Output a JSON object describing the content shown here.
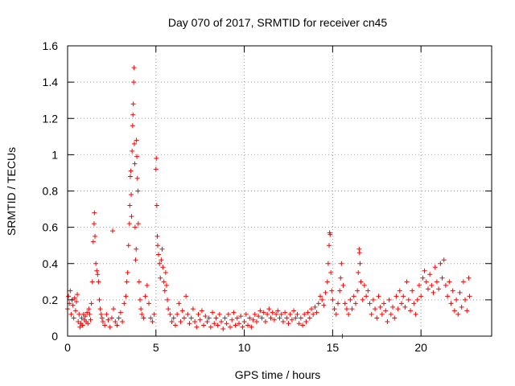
{
  "chart_data": {
    "type": "scatter",
    "title": "Day 070 of 2017, SRMTID for receiver cn45",
    "xlabel": "GPS time / hours",
    "ylabel": "SRMTID / TECUs",
    "xlim": [
      0,
      24
    ],
    "ylim": [
      0,
      1.6
    ],
    "xticks": [
      0,
      5,
      10,
      15,
      20
    ],
    "yticks": [
      0,
      0.2,
      0.4,
      0.6,
      0.8,
      1,
      1.2,
      1.4,
      1.6
    ],
    "xtick_labels": [
      "0",
      "5",
      "10",
      "15",
      "20"
    ],
    "ytick_labels": [
      "0",
      "0.2",
      "0.4",
      "0.6",
      "0.8",
      "1",
      "1.2",
      "1.4",
      "1.6"
    ],
    "grid": true,
    "marker": "+",
    "color": "#ff0000",
    "series": [
      {
        "name": "SRMTID",
        "points": [
          [
            0.0,
            0.15
          ],
          [
            0.05,
            0.22
          ],
          [
            0.1,
            0.18
          ],
          [
            0.15,
            0.25
          ],
          [
            0.2,
            0.12
          ],
          [
            0.25,
            0.2
          ],
          [
            0.3,
            0.17
          ],
          [
            0.35,
            0.1
          ],
          [
            0.4,
            0.21
          ],
          [
            0.45,
            0.14
          ],
          [
            0.5,
            0.19
          ],
          [
            0.55,
            0.23
          ],
          [
            0.6,
            0.08
          ],
          [
            0.65,
            0.12
          ],
          [
            0.7,
            0.05
          ],
          [
            0.75,
            0.07
          ],
          [
            0.8,
            0.1
          ],
          [
            0.85,
            0.06
          ],
          [
            0.9,
            0.12
          ],
          [
            0.95,
            0.09
          ],
          [
            1.0,
            0.11
          ],
          [
            1.05,
            0.08
          ],
          [
            1.1,
            0.13
          ],
          [
            1.15,
            0.07
          ],
          [
            1.2,
            0.15
          ],
          [
            1.25,
            0.12
          ],
          [
            1.3,
            0.09
          ],
          [
            1.35,
            0.18
          ],
          [
            1.4,
            0.3
          ],
          [
            1.45,
            0.52
          ],
          [
            1.5,
            0.62
          ],
          [
            1.52,
            0.68
          ],
          [
            1.55,
            0.55
          ],
          [
            1.6,
            0.4
          ],
          [
            1.65,
            0.36
          ],
          [
            1.7,
            0.34
          ],
          [
            1.75,
            0.3
          ],
          [
            1.8,
            0.2
          ],
          [
            1.85,
            0.15
          ],
          [
            1.9,
            0.12
          ],
          [
            1.95,
            0.1
          ],
          [
            2.0,
            0.08
          ],
          [
            2.1,
            0.06
          ],
          [
            2.2,
            0.12
          ],
          [
            2.3,
            0.09
          ],
          [
            2.4,
            0.05
          ],
          [
            2.5,
            0.1
          ],
          [
            2.55,
            0.58
          ],
          [
            2.6,
            0.15
          ],
          [
            2.7,
            0.08
          ],
          [
            2.8,
            0.06
          ],
          [
            2.9,
            0.1
          ],
          [
            3.0,
            0.13
          ],
          [
            3.1,
            0.08
          ],
          [
            3.2,
            0.18
          ],
          [
            3.3,
            0.22
          ],
          [
            3.35,
            0.3
          ],
          [
            3.4,
            0.35
          ],
          [
            3.45,
            0.5
          ],
          [
            3.5,
            0.62
          ],
          [
            3.52,
            0.72
          ],
          [
            3.55,
            0.88
          ],
          [
            3.58,
            0.91
          ],
          [
            3.6,
            0.78
          ],
          [
            3.62,
            0.66
          ],
          [
            3.65,
            1.02
          ],
          [
            3.68,
            1.16
          ],
          [
            3.7,
            1.22
          ],
          [
            3.72,
            1.28
          ],
          [
            3.74,
            1.4
          ],
          [
            3.76,
            1.48
          ],
          [
            3.78,
            1.06
          ],
          [
            3.8,
            0.95
          ],
          [
            3.82,
            0.6
          ],
          [
            3.85,
            0.42
          ],
          [
            3.88,
            0.48
          ],
          [
            3.9,
            1.08
          ],
          [
            3.92,
            0.99
          ],
          [
            3.95,
            0.87
          ],
          [
            3.98,
            0.8
          ],
          [
            4.0,
            0.62
          ],
          [
            4.05,
            0.3
          ],
          [
            4.1,
            0.2
          ],
          [
            4.15,
            0.15
          ],
          [
            4.2,
            0.12
          ],
          [
            4.3,
            0.1
          ],
          [
            4.4,
            0.22
          ],
          [
            4.5,
            0.28
          ],
          [
            4.6,
            0.18
          ],
          [
            4.7,
            0.1
          ],
          [
            4.8,
            0.08
          ],
          [
            4.9,
            0.12
          ],
          [
            5.0,
            0.92
          ],
          [
            5.02,
            0.98
          ],
          [
            5.05,
            0.72
          ],
          [
            5.08,
            0.55
          ],
          [
            5.1,
            0.5
          ],
          [
            5.15,
            0.45
          ],
          [
            5.2,
            0.4
          ],
          [
            5.25,
            0.32
          ],
          [
            5.3,
            0.42
          ],
          [
            5.35,
            0.48
          ],
          [
            5.4,
            0.38
          ],
          [
            5.45,
            0.3
          ],
          [
            5.5,
            0.25
          ],
          [
            5.55,
            0.35
          ],
          [
            5.6,
            0.28
          ],
          [
            5.65,
            0.2
          ],
          [
            5.7,
            0.15
          ],
          [
            5.8,
            0.12
          ],
          [
            5.9,
            0.08
          ],
          [
            6.0,
            0.1
          ],
          [
            6.1,
            0.06
          ],
          [
            6.2,
            0.12
          ],
          [
            6.3,
            0.18
          ],
          [
            6.4,
            0.08
          ],
          [
            6.5,
            0.14
          ],
          [
            6.6,
            0.1
          ],
          [
            6.7,
            0.22
          ],
          [
            6.8,
            0.12
          ],
          [
            6.9,
            0.07
          ],
          [
            7.0,
            0.1
          ],
          [
            7.1,
            0.15
          ],
          [
            7.2,
            0.08
          ],
          [
            7.3,
            0.05
          ],
          [
            7.4,
            0.12
          ],
          [
            7.5,
            0.09
          ],
          [
            7.6,
            0.14
          ],
          [
            7.7,
            0.06
          ],
          [
            7.8,
            0.11
          ],
          [
            7.9,
            0.08
          ],
          [
            8.0,
            0.1
          ],
          [
            8.1,
            0.05
          ],
          [
            8.2,
            0.13
          ],
          [
            8.3,
            0.07
          ],
          [
            8.4,
            0.1
          ],
          [
            8.5,
            0.06
          ],
          [
            8.6,
            0.12
          ],
          [
            8.7,
            0.08
          ],
          [
            8.8,
            0.04
          ],
          [
            8.9,
            0.1
          ],
          [
            9.0,
            0.07
          ],
          [
            9.1,
            0.12
          ],
          [
            9.2,
            0.05
          ],
          [
            9.3,
            0.09
          ],
          [
            9.4,
            0.13
          ],
          [
            9.5,
            0.06
          ],
          [
            9.6,
            0.1
          ],
          [
            9.7,
            0.07
          ],
          [
            9.8,
            0.11
          ],
          [
            9.9,
            0.05
          ],
          [
            10.0,
            0.08
          ],
          [
            10.1,
            0.12
          ],
          [
            10.2,
            0.06
          ],
          [
            10.3,
            0.1
          ],
          [
            10.4,
            0.05
          ],
          [
            10.5,
            0.09
          ],
          [
            10.6,
            0.12
          ],
          [
            10.7,
            0.08
          ],
          [
            10.8,
            0.11
          ],
          [
            10.9,
            0.14
          ],
          [
            11.0,
            0.1
          ],
          [
            11.1,
            0.13
          ],
          [
            11.2,
            0.08
          ],
          [
            11.3,
            0.12
          ],
          [
            11.4,
            0.15
          ],
          [
            11.5,
            0.1
          ],
          [
            11.6,
            0.13
          ],
          [
            11.7,
            0.09
          ],
          [
            11.8,
            0.12
          ],
          [
            11.9,
            0.14
          ],
          [
            12.0,
            0.1
          ],
          [
            12.1,
            0.12
          ],
          [
            12.2,
            0.08
          ],
          [
            12.3,
            0.13
          ],
          [
            12.4,
            0.1
          ],
          [
            12.5,
            0.07
          ],
          [
            12.6,
            0.12
          ],
          [
            12.7,
            0.09
          ],
          [
            12.8,
            0.14
          ],
          [
            12.9,
            0.1
          ],
          [
            13.0,
            0.12
          ],
          [
            13.1,
            0.07
          ],
          [
            13.2,
            0.1
          ],
          [
            13.3,
            0.06
          ],
          [
            13.4,
            0.12
          ],
          [
            13.5,
            0.08
          ],
          [
            13.6,
            0.13
          ],
          [
            13.7,
            0.1
          ],
          [
            13.8,
            0.15
          ],
          [
            13.9,
            0.12
          ],
          [
            14.0,
            0.16
          ],
          [
            14.1,
            0.13
          ],
          [
            14.2,
            0.18
          ],
          [
            14.3,
            0.22
          ],
          [
            14.4,
            0.2
          ],
          [
            14.5,
            0.17
          ],
          [
            14.6,
            0.24
          ],
          [
            14.7,
            0.3
          ],
          [
            14.75,
            0.4
          ],
          [
            14.8,
            0.5
          ],
          [
            14.83,
            0.57
          ],
          [
            14.86,
            0.56
          ],
          [
            14.9,
            0.35
          ],
          [
            14.95,
            0.25
          ],
          [
            15.0,
            0.2
          ],
          [
            15.1,
            0.15
          ],
          [
            15.2,
            0.12
          ],
          [
            15.3,
            0.18
          ],
          [
            15.4,
            0.25
          ],
          [
            15.45,
            0.32
          ],
          [
            15.5,
            0.4
          ],
          [
            15.55,
            0.0
          ],
          [
            15.6,
            0.28
          ],
          [
            15.7,
            0.18
          ],
          [
            15.8,
            0.15
          ],
          [
            15.9,
            0.12
          ],
          [
            16.0,
            0.2
          ],
          [
            16.1,
            0.15
          ],
          [
            16.2,
            0.22
          ],
          [
            16.3,
            0.18
          ],
          [
            16.4,
            0.25
          ],
          [
            16.45,
            0.35
          ],
          [
            16.5,
            0.48
          ],
          [
            16.52,
            0.46
          ],
          [
            16.55,
            0.4
          ],
          [
            16.6,
            0.3
          ],
          [
            16.7,
            0.2
          ],
          [
            16.8,
            0.28
          ],
          [
            16.9,
            0.22
          ],
          [
            17.0,
            0.25
          ],
          [
            17.1,
            0.18
          ],
          [
            17.2,
            0.12
          ],
          [
            17.3,
            0.2
          ],
          [
            17.4,
            0.15
          ],
          [
            17.5,
            0.1
          ],
          [
            17.6,
            0.22
          ],
          [
            17.7,
            0.16
          ],
          [
            17.8,
            0.12
          ],
          [
            17.9,
            0.18
          ],
          [
            18.0,
            0.14
          ],
          [
            18.1,
            0.08
          ],
          [
            18.2,
            0.2
          ],
          [
            18.3,
            0.12
          ],
          [
            18.4,
            0.16
          ],
          [
            18.5,
            0.1
          ],
          [
            18.6,
            0.22
          ],
          [
            18.7,
            0.15
          ],
          [
            18.8,
            0.25
          ],
          [
            18.9,
            0.18
          ],
          [
            19.0,
            0.22
          ],
          [
            19.1,
            0.16
          ],
          [
            19.2,
            0.3
          ],
          [
            19.3,
            0.2
          ],
          [
            19.4,
            0.14
          ],
          [
            19.5,
            0.25
          ],
          [
            19.6,
            0.18
          ],
          [
            19.7,
            0.12
          ],
          [
            19.8,
            0.2
          ],
          [
            19.9,
            0.28
          ],
          [
            20.0,
            0.22
          ],
          [
            20.1,
            0.32
          ],
          [
            20.2,
            0.36
          ],
          [
            20.3,
            0.3
          ],
          [
            20.4,
            0.26
          ],
          [
            20.5,
            0.34
          ],
          [
            20.6,
            0.28
          ],
          [
            20.7,
            0.24
          ],
          [
            20.8,
            0.38
          ],
          [
            20.9,
            0.3
          ],
          [
            21.0,
            0.26
          ],
          [
            21.1,
            0.4
          ],
          [
            21.2,
            0.32
          ],
          [
            21.3,
            0.42
          ],
          [
            21.4,
            0.28
          ],
          [
            21.5,
            0.22
          ],
          [
            21.6,
            0.3
          ],
          [
            21.7,
            0.18
          ],
          [
            21.8,
            0.25
          ],
          [
            21.9,
            0.14
          ],
          [
            22.0,
            0.2
          ],
          [
            22.1,
            0.12
          ],
          [
            22.2,
            0.24
          ],
          [
            22.3,
            0.16
          ],
          [
            22.4,
            0.3
          ],
          [
            22.5,
            0.2
          ],
          [
            22.6,
            0.14
          ],
          [
            22.7,
            0.32
          ],
          [
            22.75,
            0.22
          ]
        ]
      }
    ]
  }
}
